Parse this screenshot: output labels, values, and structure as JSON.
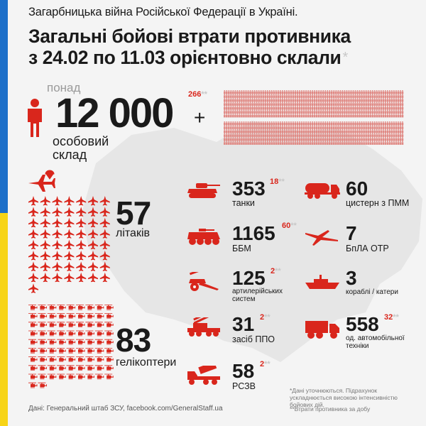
{
  "header": {
    "subtitle": "Загарбницька війна Російської Федерації в Україні.",
    "title_line1": "Загальні бойові втрати противника",
    "title_line2": "з 24.02 по 11.03 орієнтовно склали",
    "title_star": "*"
  },
  "personnel": {
    "prefix": "понад",
    "value": "12 000",
    "plus": "+",
    "delta": "266",
    "delta_marks": "**",
    "label_line1": "особовий",
    "label_line2": "склад",
    "icon": "person-icon"
  },
  "aircraft": {
    "value": "57",
    "label": "літаків",
    "icon": "airplane-icon"
  },
  "helicopters": {
    "value": "83",
    "label": "гелікоптери",
    "icon": "helicopter-icon"
  },
  "items": {
    "tanks": {
      "value": "353",
      "delta": "18",
      "marks": "**",
      "label": "танки",
      "icon": "tank-icon"
    },
    "fuel_tanks": {
      "value": "60",
      "label": "цистерн з ПММ",
      "icon": "fuel-tank-icon"
    },
    "apc": {
      "value": "1165",
      "delta": "60",
      "marks": "**",
      "label": "ББМ",
      "icon": "apc-icon"
    },
    "uav": {
      "value": "7",
      "label": "БпЛА ОТР",
      "icon": "drone-icon"
    },
    "artillery": {
      "value": "125",
      "delta": "2",
      "marks": "**",
      "label_line1": "артилерійських",
      "label_line2": "систем",
      "icon": "artillery-icon"
    },
    "ships": {
      "value": "3",
      "label": "кораблі / катери",
      "icon": "ship-icon"
    },
    "air_defense": {
      "value": "31",
      "delta": "2",
      "marks": "**",
      "label": "засіб ППО",
      "icon": "air-defense-icon"
    },
    "vehicles": {
      "value": "558",
      "delta": "32",
      "marks": "**",
      "label_line1": "од. автомобільної",
      "label_line2": "техніки",
      "icon": "truck-icon"
    },
    "mlrs": {
      "value": "58",
      "delta": "2",
      "marks": "**",
      "label": "РСЗВ",
      "icon": "mlrs-icon"
    }
  },
  "footer": {
    "source": "Дані: Генеральний штаб ЗСУ, facebook.com/GeneralStaff.ua",
    "note1": "*Дані уточнюються. Підрахунок ускладнюється високою інтенсивністю бойових дій.",
    "note2": "**Втрати противника за добу"
  },
  "colors": {
    "accent": "#d9261c",
    "blue": "#1d6fc9",
    "yellow": "#f7d417",
    "map": "#e6e6e6",
    "background": "#f4f4f4"
  }
}
